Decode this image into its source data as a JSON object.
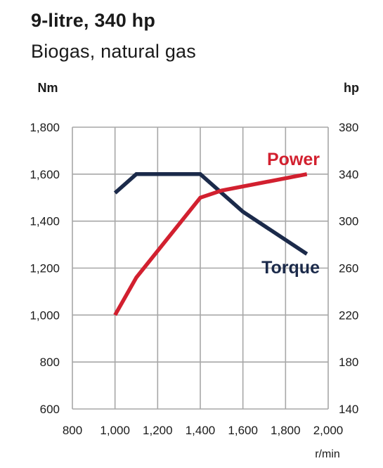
{
  "chart_data": {
    "type": "line",
    "title": "9-litre, 340 hp",
    "subtitle": "Biogas, natural gas",
    "xlabel": "r/min",
    "ylabel_left": "Nm",
    "ylabel_right": "hp",
    "xlim": [
      800,
      2000
    ],
    "ylim_left": [
      600,
      1800
    ],
    "ylim_right": [
      140,
      380
    ],
    "x_ticks": [
      "800",
      "1,000",
      "1,200",
      "1,400",
      "1,600",
      "1,800",
      "2,000"
    ],
    "y_left_ticks": [
      "600",
      "800",
      "1,000",
      "1,200",
      "1,400",
      "1,600",
      "1,800"
    ],
    "y_right_ticks": [
      "140",
      "180",
      "220",
      "260",
      "300",
      "340",
      "380"
    ],
    "x_tick_values": [
      800,
      1000,
      1200,
      1400,
      1600,
      1800,
      2000
    ],
    "y_left_tick_values": [
      600,
      800,
      1000,
      1200,
      1400,
      1600,
      1800
    ],
    "grid": true,
    "series": [
      {
        "name": "Torque",
        "axis": "left",
        "color": "#1b2a4a",
        "points": [
          [
            1000,
            1520
          ],
          [
            1100,
            1600
          ],
          [
            1400,
            1600
          ],
          [
            1600,
            1440
          ],
          [
            1900,
            1260
          ]
        ]
      },
      {
        "name": "Power",
        "axis": "right",
        "color": "#d2202f",
        "points": [
          [
            1000,
            220
          ],
          [
            1100,
            252
          ],
          [
            1400,
            320
          ],
          [
            1500,
            326
          ],
          [
            1900,
            340
          ]
        ]
      }
    ]
  }
}
